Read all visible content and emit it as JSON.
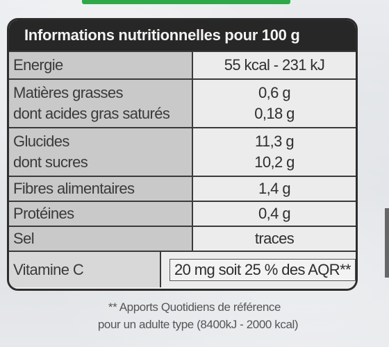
{
  "table": {
    "title": "Informations nutritionnelles pour 100 g",
    "rows": {
      "energie": {
        "label": "Energie",
        "value": "55 kcal - 231 kJ"
      },
      "matieres_grasses": {
        "label": "Matières grasses",
        "value": "0,6 g"
      },
      "acides_gras_satures": {
        "label": "dont acides gras saturés",
        "value": "0,18 g"
      },
      "glucides": {
        "label": "Glucides",
        "value": "11,3 g"
      },
      "sucres": {
        "label": "dont sucres",
        "value": "10,2 g"
      },
      "fibres": {
        "label": "Fibres alimentaires",
        "value": "1,4 g"
      },
      "proteines": {
        "label": "Protéines",
        "value": "0,4 g"
      },
      "sel": {
        "label": "Sel",
        "value": "traces"
      },
      "vitamine_c": {
        "label": "Vitamine C",
        "value": "20 mg soit 25 % des AQR**"
      }
    }
  },
  "footnote": {
    "line1": "** Apports Quotidiens de référence",
    "line2": "pour un adulte type (8400kJ - 2000 kcal)"
  },
  "colors": {
    "header_bg": "#272727",
    "label_bg": "#c9c9c9",
    "value_bg": "#ececec",
    "brand_green": "#2fa84a"
  }
}
